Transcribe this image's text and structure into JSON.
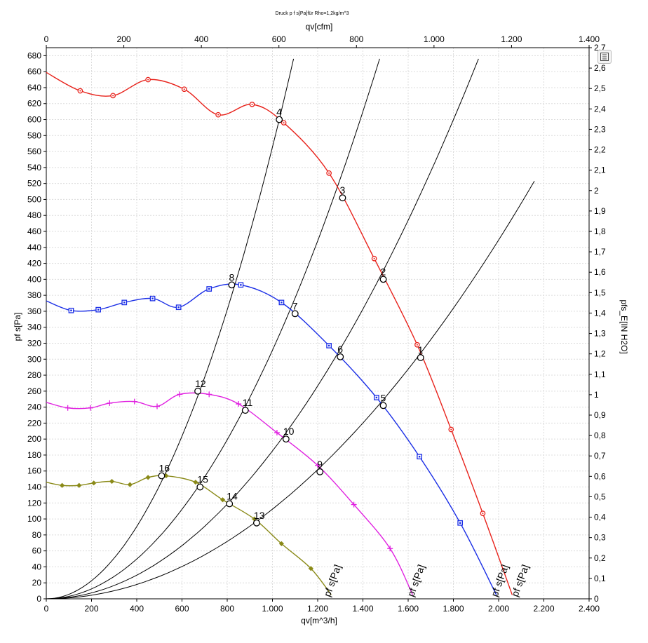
{
  "chart_data": {
    "type": "line",
    "title": "Druck p f s[Pa]für Rho=1,2kg/m^3",
    "xlabel": "qv[m^3/h]",
    "ylabel": "pf s[Pa]",
    "x2label": "qv[cfm]",
    "y2label": "pfs_E[IN H2O]",
    "xlim": [
      0,
      2400
    ],
    "ylim": [
      0,
      690
    ],
    "x2lim": [
      0,
      1400
    ],
    "y2lim": [
      0,
      2.7
    ],
    "x_ticks": [
      "0",
      "200",
      "400",
      "600",
      "800",
      "1.000",
      "1.200",
      "1.400",
      "1.600",
      "1.800",
      "2.000",
      "2.200",
      "2.400"
    ],
    "y_ticks": [
      "0",
      "20",
      "40",
      "60",
      "80",
      "100",
      "120",
      "140",
      "160",
      "180",
      "200",
      "220",
      "240",
      "260",
      "280",
      "300",
      "320",
      "340",
      "360",
      "380",
      "400",
      "420",
      "440",
      "460",
      "480",
      "500",
      "520",
      "540",
      "560",
      "580",
      "600",
      "620",
      "640",
      "660",
      "680"
    ],
    "x2_ticks": [
      "0",
      "200",
      "400",
      "600",
      "800",
      "1.000",
      "1.200",
      "1.400"
    ],
    "y2_ticks": [
      "0",
      "0,1",
      "0,2",
      "0,3",
      "0,4",
      "0,5",
      "0,6",
      "0,7",
      "0,8",
      "0,9",
      "1",
      "1,1",
      "1,2",
      "1,3",
      "1,4",
      "1,5",
      "1,6",
      "1,7",
      "1,8",
      "1,9",
      "2",
      "2,1",
      "2,2",
      "2,3",
      "2,4",
      "2,5",
      "2,6",
      "2,7"
    ],
    "grid": true,
    "series": [
      {
        "name": "pf s[Pa]",
        "color": "#e8231c",
        "marker": "circle-dot",
        "label_at": [
          2090,
          0
        ],
        "points": [
          [
            0,
            659
          ],
          [
            150,
            636
          ],
          [
            295,
            630
          ],
          [
            450,
            650
          ],
          [
            610,
            638
          ],
          [
            760,
            606
          ],
          [
            910,
            619
          ],
          [
            1050,
            596
          ],
          [
            1250,
            533
          ],
          [
            1450,
            426
          ],
          [
            1640,
            318
          ],
          [
            1790,
            212
          ],
          [
            1930,
            107
          ],
          [
            2060,
            5
          ]
        ]
      },
      {
        "name": "pf s[Pa]",
        "color": "#1a2ee6",
        "marker": "square",
        "label_at": [
          2000,
          0
        ],
        "points": [
          [
            0,
            373
          ],
          [
            110,
            361
          ],
          [
            230,
            362
          ],
          [
            345,
            371
          ],
          [
            470,
            376
          ],
          [
            585,
            365
          ],
          [
            720,
            388
          ],
          [
            860,
            393
          ],
          [
            1040,
            371
          ],
          [
            1250,
            317
          ],
          [
            1460,
            252
          ],
          [
            1650,
            178
          ],
          [
            1830,
            95
          ],
          [
            1990,
            5
          ]
        ]
      },
      {
        "name": "pf s[Pa]",
        "color": "#e020e0",
        "marker": "plus",
        "label_at": [
          1630,
          0
        ],
        "points": [
          [
            0,
            246
          ],
          [
            95,
            239
          ],
          [
            195,
            239
          ],
          [
            280,
            245
          ],
          [
            390,
            247
          ],
          [
            490,
            241
          ],
          [
            590,
            256
          ],
          [
            720,
            256
          ],
          [
            850,
            244
          ],
          [
            1020,
            208
          ],
          [
            1200,
            167
          ],
          [
            1360,
            118
          ],
          [
            1520,
            63
          ],
          [
            1620,
            5
          ]
        ]
      },
      {
        "name": "pf s[Pa]",
        "color": "#8a8a18",
        "marker": "diamond",
        "label_at": [
          1260,
          0
        ],
        "points": [
          [
            0,
            146
          ],
          [
            70,
            142
          ],
          [
            145,
            142
          ],
          [
            210,
            145
          ],
          [
            290,
            147
          ],
          [
            370,
            143
          ],
          [
            450,
            152
          ],
          [
            530,
            154
          ],
          [
            660,
            146
          ],
          [
            780,
            124
          ],
          [
            920,
            100
          ],
          [
            1040,
            69
          ],
          [
            1170,
            38
          ],
          [
            1260,
            5
          ]
        ]
      }
    ],
    "system_curves": [
      {
        "through": [
          1030,
          600
        ],
        "end_y": 676
      },
      {
        "through": [
          1270,
          502
        ],
        "end_y": 676
      },
      {
        "through": [
          1470,
          400
        ],
        "end_y": 676
      },
      {
        "through": [
          1640,
          302
        ],
        "end_y": 523
      }
    ],
    "operating_points": [
      {
        "id": "1",
        "x": 1655,
        "y": 302
      },
      {
        "id": "2",
        "x": 1490,
        "y": 400
      },
      {
        "id": "3",
        "x": 1310,
        "y": 502
      },
      {
        "id": "4",
        "x": 1030,
        "y": 600
      },
      {
        "id": "5",
        "x": 1490,
        "y": 242
      },
      {
        "id": "6",
        "x": 1300,
        "y": 303
      },
      {
        "id": "7",
        "x": 1100,
        "y": 357
      },
      {
        "id": "8",
        "x": 820,
        "y": 393
      },
      {
        "id": "9",
        "x": 1210,
        "y": 159
      },
      {
        "id": "10",
        "x": 1060,
        "y": 200
      },
      {
        "id": "11",
        "x": 880,
        "y": 236
      },
      {
        "id": "12",
        "x": 670,
        "y": 260
      },
      {
        "id": "13",
        "x": 930,
        "y": 95
      },
      {
        "id": "14",
        "x": 810,
        "y": 119
      },
      {
        "id": "15",
        "x": 680,
        "y": 140
      },
      {
        "id": "16",
        "x": 510,
        "y": 154
      }
    ]
  },
  "toolbar": {
    "zoom_icon": "zoom-fit-icon"
  }
}
